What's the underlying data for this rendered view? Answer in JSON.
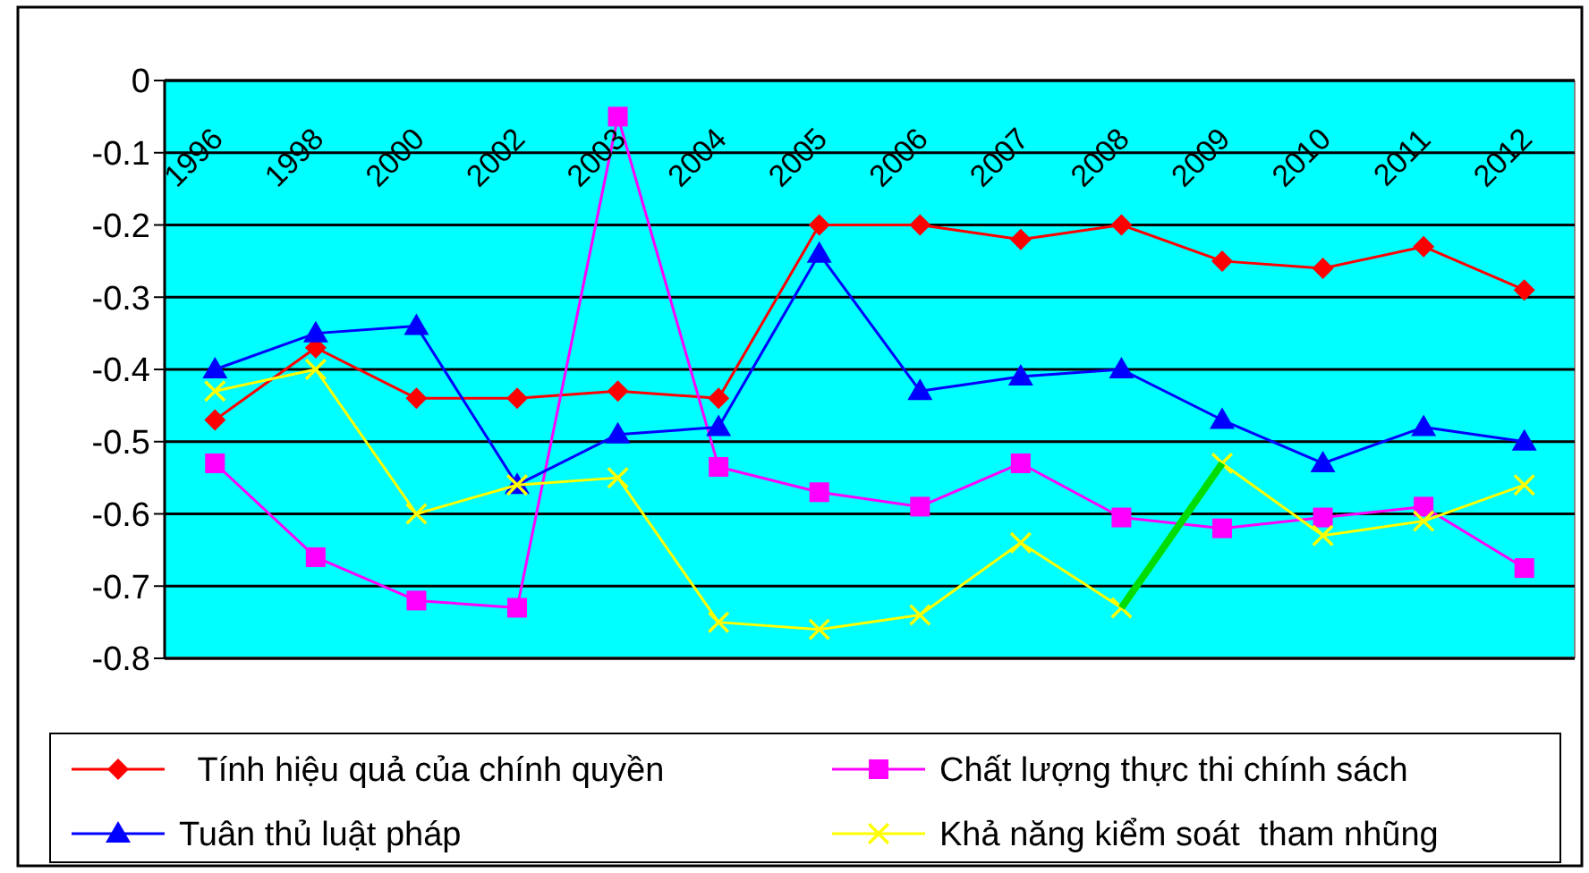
{
  "chart_data": {
    "type": "line",
    "categories": [
      "1996",
      "1998",
      "2000",
      "2002",
      "2003",
      "2004",
      "2005",
      "2006",
      "2007",
      "2008",
      "2009",
      "2010",
      "2011",
      "2012"
    ],
    "ylim": [
      -0.8,
      0
    ],
    "yticks": [
      0,
      -0.1,
      -0.2,
      -0.3,
      -0.4,
      -0.5,
      -0.6,
      -0.7,
      -0.8
    ],
    "grid": "y",
    "legend": "bottom",
    "series": [
      {
        "name": "  Tính hiệu quả của chính quyền",
        "color": "#ff0000",
        "marker": "diamond",
        "values": [
          -0.47,
          -0.37,
          -0.44,
          -0.44,
          -0.43,
          -0.44,
          -0.2,
          -0.2,
          -0.22,
          -0.2,
          -0.25,
          -0.26,
          -0.23,
          -0.29
        ]
      },
      {
        "name": "Chất lượng thực thi chính sách",
        "color": "#ff00ff",
        "marker": "square",
        "values": [
          -0.53,
          -0.66,
          -0.72,
          -0.73,
          -0.05,
          -0.535,
          -0.57,
          -0.59,
          -0.53,
          -0.605,
          -0.62,
          -0.605,
          -0.59,
          -0.675
        ]
      },
      {
        "name": "Tuân thủ luật pháp",
        "color": "#0000ff",
        "marker": "triangle",
        "values": [
          -0.4,
          -0.35,
          -0.34,
          -0.56,
          -0.49,
          -0.48,
          -0.24,
          -0.43,
          -0.41,
          -0.4,
          -0.47,
          -0.53,
          -0.48,
          -0.5
        ]
      },
      {
        "name": "Khả năng kiểm soát  tham nhũng",
        "color": "#ffff00",
        "marker": "cross",
        "values": [
          -0.43,
          -0.4,
          -0.6,
          -0.56,
          -0.55,
          -0.75,
          -0.76,
          -0.74,
          -0.64,
          -0.73,
          -0.53,
          -0.63,
          -0.61,
          -0.56
        ]
      },
      {
        "color": "#00dd00",
        "marker": "none",
        "values": [
          null,
          null,
          null,
          null,
          null,
          null,
          null,
          null,
          null,
          -0.73,
          -0.53,
          null,
          null,
          null
        ]
      }
    ]
  }
}
